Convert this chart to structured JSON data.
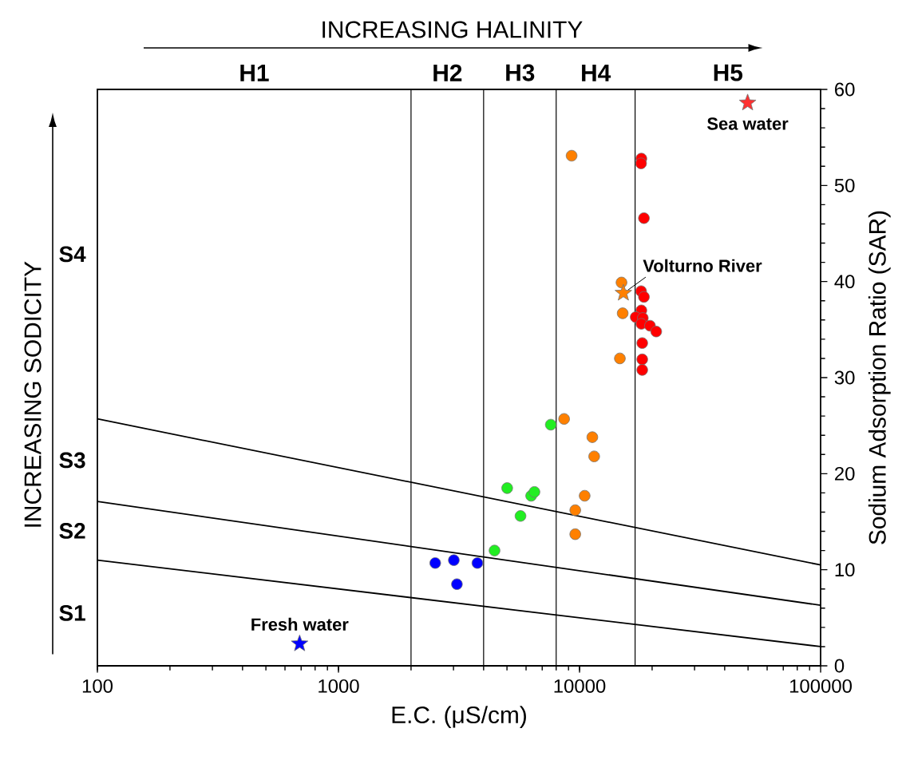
{
  "chart_data": {
    "type": "scatter",
    "xlabel": "E.C. (μS/cm)",
    "ylabel": "Sodium Adsorption Ratio (SAR)",
    "xlim": [
      100,
      100000
    ],
    "ylim": [
      0,
      60
    ],
    "xticks": [
      100,
      1000,
      10000,
      100000
    ],
    "yticks": [
      0,
      10,
      20,
      30,
      40,
      50,
      60
    ],
    "log": "x",
    "grid": false,
    "series": [
      {
        "type": "line",
        "color": "#000000",
        "marker": "none",
        "x": [
          100,
          100000
        ],
        "values": [
          11.0,
          2.0
        ]
      },
      {
        "type": "line",
        "color": "#000000",
        "marker": "none",
        "x": [
          100,
          100000
        ],
        "values": [
          17.1,
          6.3
        ]
      },
      {
        "type": "line",
        "color": "#000000",
        "marker": "none",
        "x": [
          100,
          100000
        ],
        "values": [
          25.7,
          10.5
        ]
      },
      {
        "color": "#0000ff",
        "marker": "circle",
        "x": [
          2520,
          3010,
          3770,
          3100
        ],
        "values": [
          10.7,
          11.0,
          10.7,
          8.5
        ]
      },
      {
        "color": "#22ee22",
        "marker": "circle",
        "x": [
          4440,
          5010,
          5690,
          6300,
          6500,
          7600
        ],
        "values": [
          12.0,
          18.5,
          15.6,
          17.7,
          18.1,
          25.1
        ]
      },
      {
        "color": "#ff8000",
        "marker": "circle",
        "x": [
          8630,
          11300,
          11500,
          10500,
          9600,
          9600,
          9270,
          14930,
          15100,
          14700
        ],
        "values": [
          25.7,
          23.8,
          21.8,
          17.7,
          16.2,
          13.7,
          53.1,
          39.9,
          36.7,
          32.0
        ]
      },
      {
        "color": "#ff0000",
        "marker": "circle",
        "x": [
          18050,
          18000,
          18500,
          18000,
          18500,
          18050,
          17100,
          18300,
          18050,
          19600,
          20800,
          18200,
          18200,
          18200
        ],
        "values": [
          52.8,
          52.3,
          46.6,
          39.0,
          38.4,
          37.0,
          36.3,
          36.2,
          35.6,
          35.4,
          34.8,
          33.6,
          31.9,
          30.8
        ]
      },
      {
        "color": "#ff8000",
        "marker": "star",
        "x": [
          15200
        ],
        "values": [
          38.8
        ]
      },
      {
        "color": "#ff3030",
        "marker": "star",
        "x": [
          49800
        ],
        "values": [
          58.6
        ]
      },
      {
        "color": "#0000ff",
        "marker": "star",
        "x": [
          690
        ],
        "values": [
          2.3
        ]
      }
    ],
    "ref_lines": [
      {
        "axis": "x",
        "value": 2000
      },
      {
        "axis": "x",
        "value": 4000
      },
      {
        "axis": "x",
        "value": 8000
      },
      {
        "axis": "x",
        "value": 17000
      }
    ],
    "annotations": [
      "INCREASING HALINITY",
      "INCREASING SODICITY",
      "H1",
      "H2",
      "H3",
      "H4",
      "H5",
      "S1",
      "S2",
      "S3",
      "S4",
      {
        "text": "Sea water",
        "x": 49800,
        "y": 58.6
      },
      {
        "text": "Volturno River",
        "x": 15200,
        "y": 38.8
      },
      {
        "text": "Fresh water",
        "x": 690,
        "y": 2.3
      }
    ]
  }
}
